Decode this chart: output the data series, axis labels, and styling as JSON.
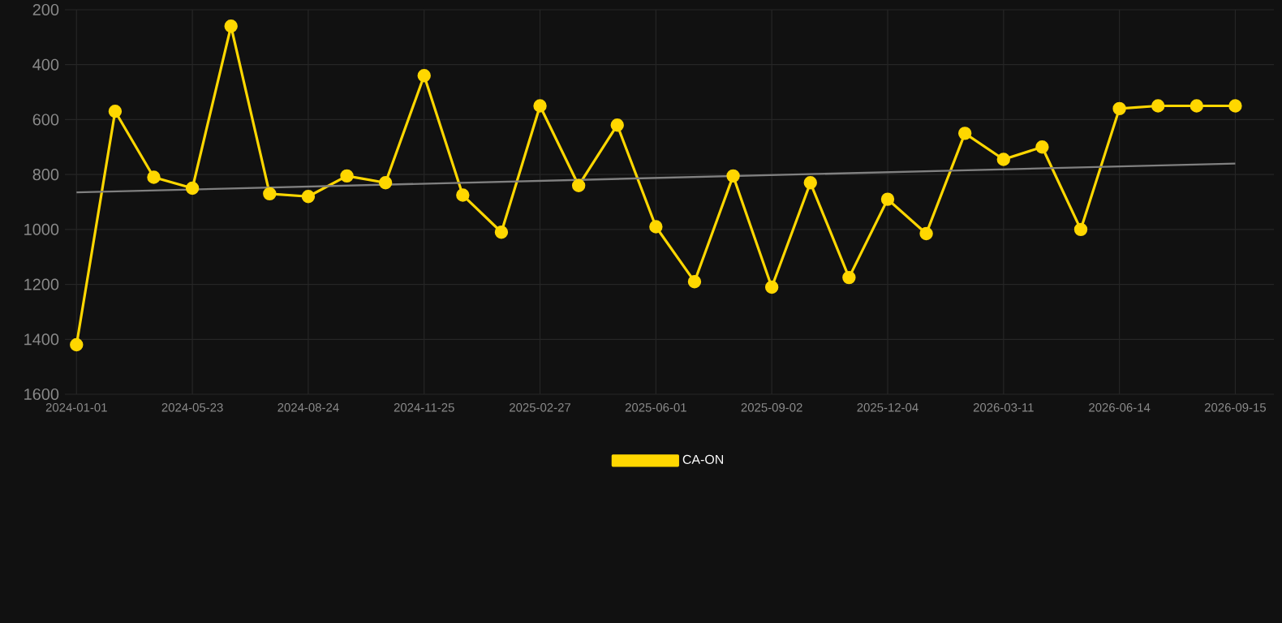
{
  "chart_data": {
    "type": "line",
    "categories": [
      "2024-01-01",
      null,
      null,
      "2024-05-23",
      null,
      null,
      "2024-08-24",
      null,
      null,
      "2024-11-25",
      null,
      null,
      "2025-02-27",
      null,
      null,
      "2025-06-01",
      null,
      null,
      "2025-09-02",
      null,
      null,
      "2025-12-04",
      null,
      null,
      "2026-03-11",
      null,
      null,
      "2026-06-14",
      null,
      null,
      "2026-09-15"
    ],
    "series": [
      {
        "name": "CA-ON",
        "color": "#ffd700",
        "values": [
          1420,
          570,
          810,
          850,
          260,
          870,
          880,
          805,
          830,
          440,
          875,
          1010,
          550,
          840,
          620,
          990,
          1190,
          805,
          1210,
          830,
          1175,
          890,
          1015,
          650,
          745,
          700,
          1000,
          560,
          550,
          550,
          550
        ]
      },
      {
        "type": "line",
        "marker": "none",
        "color": "#808080",
        "values": [
          865,
          null,
          null,
          null,
          null,
          null,
          null,
          null,
          null,
          null,
          null,
          null,
          null,
          null,
          null,
          null,
          null,
          null,
          null,
          null,
          null,
          null,
          null,
          null,
          null,
          null,
          null,
          null,
          null,
          null,
          760
        ]
      }
    ],
    "ylim": [
      1600,
      200
    ],
    "yticks": [
      200,
      400,
      600,
      800,
      1000,
      1200,
      1400,
      1600
    ],
    "grid": true,
    "legend": "bottom",
    "marker": "circle",
    "line_style": "solid"
  }
}
